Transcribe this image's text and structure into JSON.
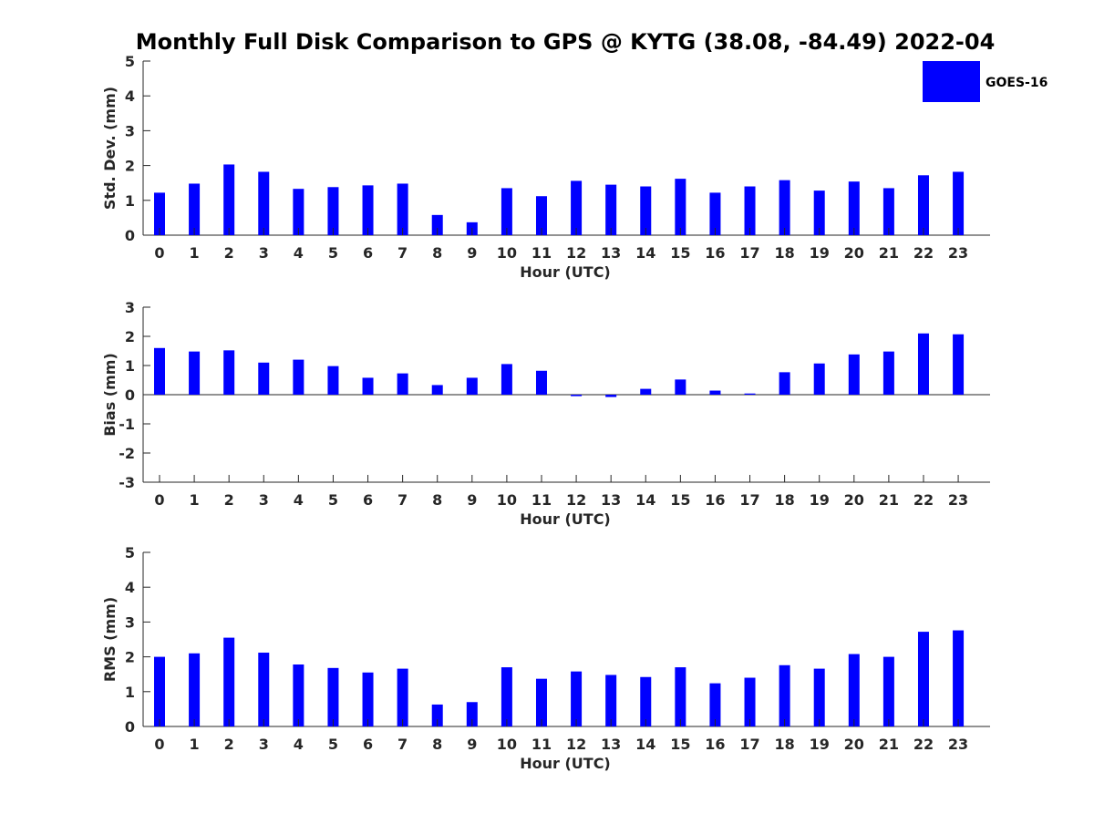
{
  "title": "Monthly Full Disk Comparison to GPS @ KYTG (38.08, -84.49) 2022-04",
  "legend": {
    "label": "GOES-16",
    "color": "#0000ff"
  },
  "chart_data": [
    {
      "type": "bar",
      "xlabel": "Hour (UTC)",
      "ylabel": "Std. Dev. (mm)",
      "ylim": [
        0,
        5
      ],
      "yticks": [
        "0",
        "1",
        "2",
        "3",
        "4",
        "5"
      ],
      "categories": [
        "0",
        "1",
        "2",
        "3",
        "4",
        "5",
        "6",
        "7",
        "8",
        "9",
        "10",
        "11",
        "12",
        "13",
        "14",
        "15",
        "16",
        "17",
        "18",
        "19",
        "20",
        "21",
        "22",
        "23"
      ],
      "series": [
        {
          "name": "GOES-16",
          "color": "#0000ff",
          "values": [
            1.22,
            1.48,
            2.03,
            1.82,
            1.33,
            1.38,
            1.43,
            1.48,
            0.58,
            0.37,
            1.35,
            1.12,
            1.56,
            1.45,
            1.4,
            1.62,
            1.22,
            1.4,
            1.58,
            1.28,
            1.54,
            1.35,
            1.72,
            1.82
          ]
        }
      ]
    },
    {
      "type": "bar",
      "xlabel": "Hour (UTC)",
      "ylabel": "Bias (mm)",
      "ylim": [
        -3,
        3
      ],
      "yticks": [
        "-3",
        "-2",
        "-1",
        "0",
        "1",
        "2",
        "3"
      ],
      "categories": [
        "0",
        "1",
        "2",
        "3",
        "4",
        "5",
        "6",
        "7",
        "8",
        "9",
        "10",
        "11",
        "12",
        "13",
        "14",
        "15",
        "16",
        "17",
        "18",
        "19",
        "20",
        "21",
        "22",
        "23"
      ],
      "series": [
        {
          "name": "GOES-16",
          "color": "#0000ff",
          "values": [
            1.6,
            1.48,
            1.52,
            1.1,
            1.2,
            0.98,
            0.58,
            0.73,
            0.33,
            0.58,
            1.05,
            0.82,
            -0.05,
            -0.08,
            0.2,
            0.52,
            0.14,
            0.04,
            0.77,
            1.07,
            1.38,
            1.48,
            2.1,
            2.07
          ]
        }
      ]
    },
    {
      "type": "bar",
      "xlabel": "Hour (UTC)",
      "ylabel": "RMS (mm)",
      "ylim": [
        0,
        5
      ],
      "yticks": [
        "0",
        "1",
        "2",
        "3",
        "4",
        "5"
      ],
      "categories": [
        "0",
        "1",
        "2",
        "3",
        "4",
        "5",
        "6",
        "7",
        "8",
        "9",
        "10",
        "11",
        "12",
        "13",
        "14",
        "15",
        "16",
        "17",
        "18",
        "19",
        "20",
        "21",
        "22",
        "23"
      ],
      "series": [
        {
          "name": "GOES-16",
          "color": "#0000ff",
          "values": [
            2.0,
            2.1,
            2.55,
            2.12,
            1.78,
            1.68,
            1.55,
            1.66,
            0.63,
            0.7,
            1.7,
            1.37,
            1.58,
            1.48,
            1.42,
            1.7,
            1.24,
            1.4,
            1.76,
            1.66,
            2.08,
            2.0,
            2.72,
            2.76
          ]
        }
      ]
    }
  ]
}
